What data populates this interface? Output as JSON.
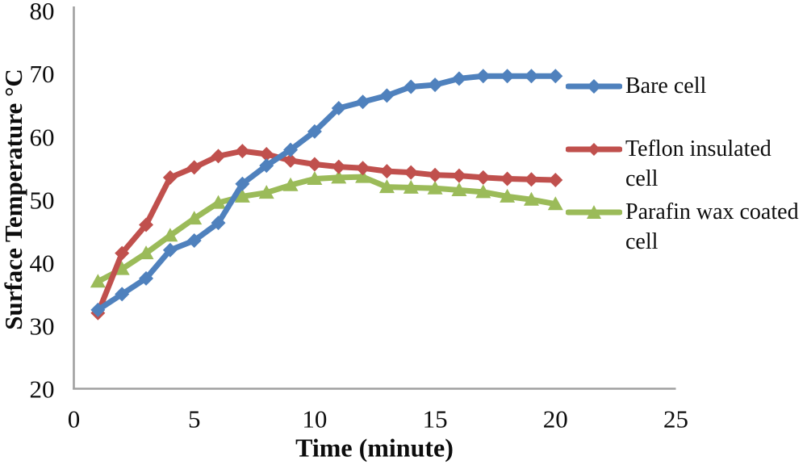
{
  "titles": {
    "x_axis": "Time (minute)",
    "y_axis": "Surface Temperature °C"
  },
  "chart_data": {
    "type": "line",
    "title": "",
    "xlabel": "Time (minute)",
    "ylabel": "Surface Temperature °C",
    "xlim": [
      0,
      25
    ],
    "ylim": [
      20,
      80
    ],
    "x_ticks": [
      0,
      5,
      10,
      15,
      20,
      25
    ],
    "y_ticks": [
      80,
      70,
      60,
      50,
      40,
      30,
      20
    ],
    "grid": false,
    "legend_position": "right",
    "axis_color": "#a0a0a0",
    "text_color": "#0d0d0d",
    "x": [
      1,
      2,
      3,
      4,
      5,
      6,
      7,
      8,
      9,
      10,
      11,
      12,
      13,
      14,
      15,
      16,
      17,
      18,
      19,
      20
    ],
    "series": [
      {
        "name": "Bare cell",
        "color": "#4F81BD",
        "marker": "diamond",
        "values": [
          32.5,
          35.0,
          37.5,
          42.0,
          43.5,
          46.3,
          52.5,
          55.4,
          57.9,
          60.8,
          64.5,
          65.5,
          66.5,
          67.9,
          68.2,
          69.2,
          69.6,
          69.6,
          69.6,
          69.6
        ]
      },
      {
        "name": "Teflon insulated cell",
        "color": "#C0504D",
        "marker": "diamond",
        "values": [
          32.0,
          41.5,
          46.0,
          53.5,
          55.1,
          56.9,
          57.7,
          57.2,
          56.2,
          55.6,
          55.2,
          55.0,
          54.5,
          54.3,
          53.9,
          53.8,
          53.5,
          53.3,
          53.2,
          53.1
        ]
      },
      {
        "name": "Parafin wax coated cell",
        "color": "#9BBB59",
        "marker": "triangle",
        "values": [
          37.0,
          39.0,
          41.5,
          44.3,
          47.0,
          49.5,
          50.5,
          51.1,
          52.3,
          53.3,
          53.5,
          53.6,
          52.0,
          51.9,
          51.8,
          51.5,
          51.2,
          50.5,
          50.0,
          49.3
        ]
      }
    ]
  }
}
